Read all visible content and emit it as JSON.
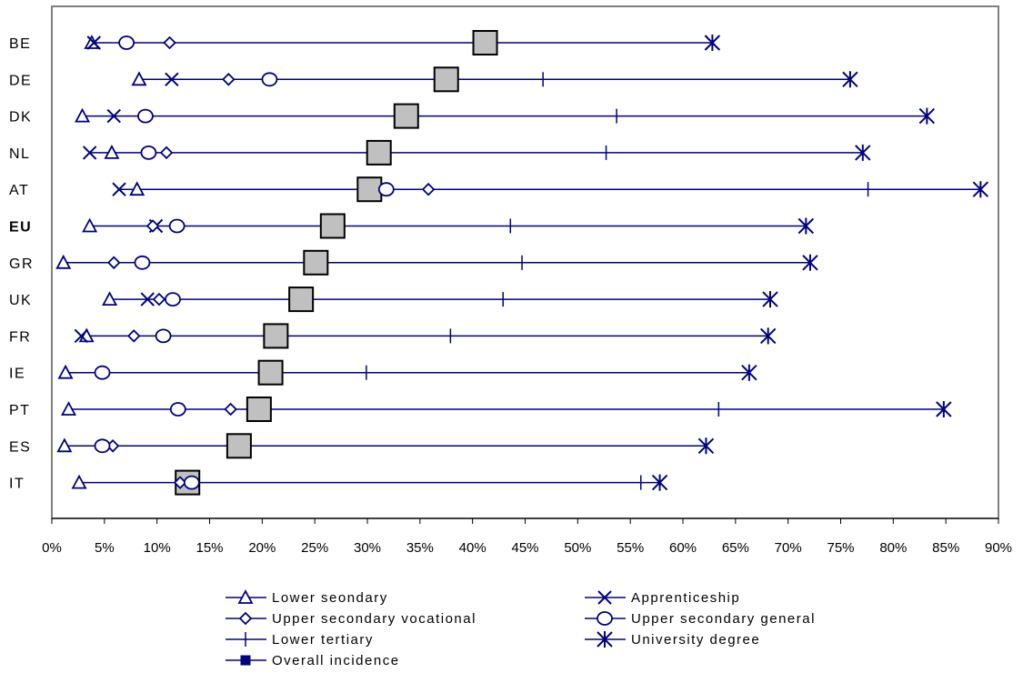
{
  "chart_data": {
    "type": "dot-range",
    "title": "",
    "xlabel": "",
    "ylabel": "",
    "xlim": [
      0,
      90
    ],
    "x_tick_values": [
      0,
      5,
      10,
      15,
      20,
      25,
      30,
      35,
      40,
      45,
      50,
      55,
      60,
      65,
      70,
      75,
      80,
      85,
      90
    ],
    "x_tick_labels": [
      "0%",
      "5%",
      "10%",
      "15%",
      "20%",
      "25%",
      "30%",
      "35%",
      "40%",
      "45%",
      "50%",
      "55%",
      "60%",
      "65%",
      "70%",
      "75%",
      "80%",
      "85%",
      "90%"
    ],
    "grid": false,
    "legend_position": "bottom",
    "colors": {
      "line": "#000080",
      "overall_fill": "#c0c0c0",
      "overall_stroke": "#000000",
      "frame": "#808080"
    },
    "categories": [
      "BE",
      "DE",
      "DK",
      "NL",
      "AT",
      "EU",
      "GR",
      "UK",
      "FR",
      "IE",
      "PT",
      "ES",
      "IT"
    ],
    "bold_categories": [
      "EU"
    ],
    "series": [
      {
        "name": "Lower seondary",
        "marker": "triangle",
        "values": [
          3.8,
          8.3,
          2.9,
          5.7,
          8.1,
          3.6,
          1.1,
          5.5,
          3.3,
          1.3,
          1.6,
          1.2,
          2.6
        ]
      },
      {
        "name": "Apprenticeship",
        "marker": "x",
        "values": [
          4.0,
          11.4,
          5.9,
          3.6,
          6.4,
          9.9,
          null,
          9.1,
          2.8,
          null,
          null,
          null,
          null
        ]
      },
      {
        "name": "Upper secondary vocational",
        "marker": "diamond",
        "values": [
          11.2,
          16.8,
          null,
          10.9,
          35.8,
          9.6,
          5.9,
          10.2,
          7.8,
          null,
          17.0,
          5.8,
          12.2
        ]
      },
      {
        "name": "Upper secondary general",
        "marker": "circle",
        "values": [
          7.1,
          20.7,
          8.9,
          9.2,
          31.8,
          11.9,
          8.6,
          11.5,
          10.6,
          4.8,
          12.0,
          4.8,
          13.3
        ]
      },
      {
        "name": "Lower tertiary",
        "marker": "plus",
        "values": [
          null,
          46.7,
          53.7,
          52.7,
          77.6,
          43.6,
          44.7,
          42.9,
          37.9,
          29.9,
          63.4,
          null,
          56.0
        ]
      },
      {
        "name": "University degree",
        "marker": "asterisk",
        "values": [
          62.8,
          75.9,
          83.2,
          77.1,
          88.3,
          71.7,
          72.1,
          68.3,
          68.1,
          66.3,
          84.8,
          62.2,
          57.8
        ]
      },
      {
        "name": "Overall incidence",
        "marker": "square",
        "values": [
          41.2,
          37.5,
          33.7,
          31.1,
          30.2,
          26.7,
          25.1,
          23.7,
          21.3,
          20.8,
          19.7,
          17.8,
          12.9
        ]
      }
    ]
  }
}
